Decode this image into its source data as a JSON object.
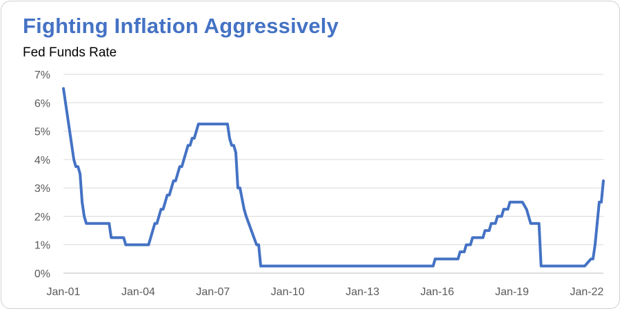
{
  "chart_data": {
    "type": "line",
    "title": "Fighting Inflation Aggressively",
    "subtitle": "Fed Funds Rate",
    "xlabel": "",
    "ylabel": "",
    "x_tick_labels": [
      "Jan-01",
      "Jan-04",
      "Jan-07",
      "Jan-10",
      "Jan-13",
      "Jan-16",
      "Jan-19",
      "Jan-22"
    ],
    "y_tick_labels": [
      "0%",
      "1%",
      "2%",
      "3%",
      "4%",
      "5%",
      "6%",
      "7%"
    ],
    "ylim": [
      0,
      7
    ],
    "xlim": [
      "2001-01",
      "2022-09"
    ],
    "grid": "horizontal",
    "line_color": "#4472c4",
    "title_color": "#4472c4",
    "series": [
      {
        "x": [
          "2001-01",
          "2001-02",
          "2001-03",
          "2001-04",
          "2001-05",
          "2001-06",
          "2001-07",
          "2001-08",
          "2001-09",
          "2001-10",
          "2001-11",
          "2001-12",
          "2002-11",
          "2002-12",
          "2003-06",
          "2003-07",
          "2004-06",
          "2004-07",
          "2004-08",
          "2004-09",
          "2004-10",
          "2004-11",
          "2004-12",
          "2005-01",
          "2005-02",
          "2005-03",
          "2005-04",
          "2005-05",
          "2005-06",
          "2005-07",
          "2005-08",
          "2005-09",
          "2005-10",
          "2005-11",
          "2005-12",
          "2006-01",
          "2006-02",
          "2006-03",
          "2006-04",
          "2006-05",
          "2006-06",
          "2006-07",
          "2007-08",
          "2007-09",
          "2007-10",
          "2007-11",
          "2007-12",
          "2008-01",
          "2008-02",
          "2008-04",
          "2008-05",
          "2008-10",
          "2008-11",
          "2008-12",
          "2015-11",
          "2015-12",
          "2016-11",
          "2016-12",
          "2017-02",
          "2017-03",
          "2017-05",
          "2017-06",
          "2017-11",
          "2017-12",
          "2018-02",
          "2018-03",
          "2018-05",
          "2018-06",
          "2018-08",
          "2018-09",
          "2018-11",
          "2018-12",
          "2019-06",
          "2019-08",
          "2019-09",
          "2019-10",
          "2020-02",
          "2020-03",
          "2021-12",
          "2022-03",
          "2022-04",
          "2022-05",
          "2022-06",
          "2022-07",
          "2022-08",
          "2022-09"
        ],
        "y": [
          6.5,
          6.0,
          5.5,
          5.0,
          4.5,
          4.0,
          3.75,
          3.75,
          3.5,
          2.5,
          2.0,
          1.75,
          1.75,
          1.25,
          1.25,
          1.0,
          1.0,
          1.25,
          1.5,
          1.75,
          1.75,
          2.0,
          2.25,
          2.25,
          2.5,
          2.75,
          2.75,
          3.0,
          3.25,
          3.25,
          3.5,
          3.75,
          3.75,
          4.0,
          4.25,
          4.5,
          4.5,
          4.75,
          4.75,
          5.0,
          5.25,
          5.25,
          5.25,
          4.75,
          4.5,
          4.5,
          4.25,
          3.0,
          3.0,
          2.25,
          2.0,
          1.0,
          1.0,
          0.25,
          0.25,
          0.5,
          0.5,
          0.75,
          0.75,
          1.0,
          1.0,
          1.25,
          1.25,
          1.5,
          1.5,
          1.75,
          1.75,
          2.0,
          2.0,
          2.25,
          2.25,
          2.5,
          2.5,
          2.25,
          2.0,
          1.75,
          1.75,
          0.25,
          0.25,
          0.5,
          0.5,
          1.0,
          1.75,
          2.5,
          2.5,
          3.25
        ]
      }
    ]
  }
}
